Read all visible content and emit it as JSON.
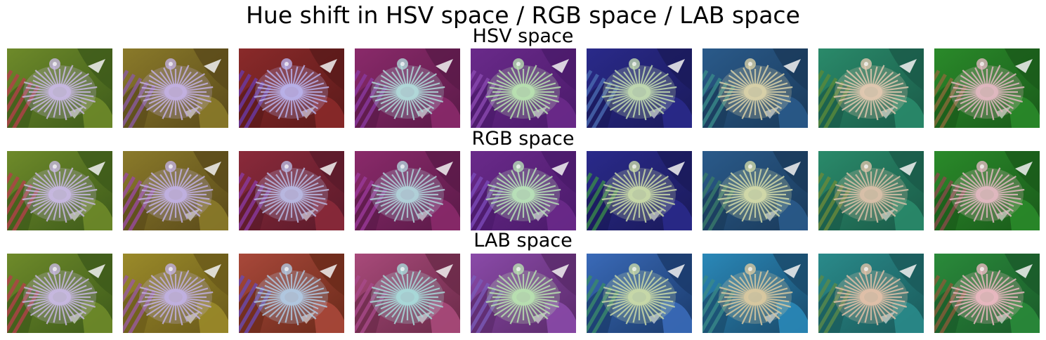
{
  "figure": {
    "title": "Hue shift in HSV space / RGB space / LAB space"
  },
  "rows": [
    {
      "id": "hsv",
      "title": "HSV space",
      "tiles": [
        {
          "tint": "#6e8a2a",
          "shade": "#3d5a1a",
          "petal": "#c7b8e0",
          "stripe": "#b3404a"
        },
        {
          "tint": "#8a7a2a",
          "shade": "#5a4a1a",
          "petal": "#c2b0e0",
          "stripe": "#8a5aa0"
        },
        {
          "tint": "#8a2a2a",
          "shade": "#5a1a1a",
          "petal": "#b8b0e8",
          "stripe": "#6a3aa8"
        },
        {
          "tint": "#8a2a6a",
          "shade": "#5a1a48",
          "petal": "#b0d8d8",
          "stripe": "#8a3aa0"
        },
        {
          "tint": "#6a2a8a",
          "shade": "#4a1a6a",
          "petal": "#b8e0b0",
          "stripe": "#8a4ab0"
        },
        {
          "tint": "#2a2a8a",
          "shade": "#1a1a5a",
          "petal": "#c0d8b0",
          "stripe": "#4a6ab0"
        },
        {
          "tint": "#2a5a8a",
          "shade": "#1a3a5a",
          "petal": "#d8d0a8",
          "stripe": "#3a8a8a"
        },
        {
          "tint": "#2a8a6a",
          "shade": "#1a5a48",
          "petal": "#e0c8b0",
          "stripe": "#5a8a3a"
        },
        {
          "tint": "#2a8a2a",
          "shade": "#1a5a1a",
          "petal": "#e0b8c0",
          "stripe": "#8a6a3a"
        }
      ]
    },
    {
      "id": "rgb",
      "title": "RGB space",
      "tiles": [
        {
          "tint": "#6e8a2a",
          "shade": "#3d5a1a",
          "petal": "#c7b8e0",
          "stripe": "#b3404a"
        },
        {
          "tint": "#8a7a2a",
          "shade": "#5a4a1a",
          "petal": "#c0b0e0",
          "stripe": "#9a4aa0"
        },
        {
          "tint": "#8a2a3a",
          "shade": "#5a1a2a",
          "petal": "#b8b8e0",
          "stripe": "#8a3aa0"
        },
        {
          "tint": "#8a2a6a",
          "shade": "#5a1a48",
          "petal": "#b0d0d8",
          "stripe": "#9a3a9a"
        },
        {
          "tint": "#6a2a8a",
          "shade": "#4a1a6a",
          "petal": "#b8e0b8",
          "stripe": "#7a4ab8"
        },
        {
          "tint": "#2a2a8a",
          "shade": "#1a1a5a",
          "petal": "#c8d8a8",
          "stripe": "#3a8a4a"
        },
        {
          "tint": "#2a5a8a",
          "shade": "#1a3a5a",
          "petal": "#d0d8a8",
          "stripe": "#3a7a6a"
        },
        {
          "tint": "#2a8a6a",
          "shade": "#1a5a48",
          "petal": "#d8c0a8",
          "stripe": "#6a8a3a"
        },
        {
          "tint": "#2a8a2a",
          "shade": "#1a5a1a",
          "petal": "#e0b8c0",
          "stripe": "#8a4a4a"
        }
      ]
    },
    {
      "id": "lab",
      "title": "LAB space",
      "tiles": [
        {
          "tint": "#6e8a2a",
          "shade": "#3d5a1a",
          "petal": "#c7b8e0",
          "stripe": "#b3404a"
        },
        {
          "tint": "#9a8a2a",
          "shade": "#6a5a1a",
          "petal": "#c0b0e0",
          "stripe": "#9a5aa0"
        },
        {
          "tint": "#a8483a",
          "shade": "#6a2a1a",
          "petal": "#b0c8e0",
          "stripe": "#6a4ab0"
        },
        {
          "tint": "#a84a7a",
          "shade": "#6a2a48",
          "petal": "#a8d8d8",
          "stripe": "#a84a8a"
        },
        {
          "tint": "#8a4aa8",
          "shade": "#5a2a6a",
          "petal": "#b8e0b0",
          "stripe": "#7a5ab8"
        },
        {
          "tint": "#3a6ab8",
          "shade": "#1a3a6a",
          "petal": "#c8d8a8",
          "stripe": "#3a8a6a"
        },
        {
          "tint": "#2a88b8",
          "shade": "#1a4a6a",
          "petal": "#d8c8a0",
          "stripe": "#3a8a8a"
        },
        {
          "tint": "#2a8a8a",
          "shade": "#1a5a5a",
          "petal": "#e0c0a8",
          "stripe": "#5a8a4a"
        },
        {
          "tint": "#2a8a3a",
          "shade": "#1a5a2a",
          "petal": "#e8b8c0",
          "stripe": "#8a5a3a"
        }
      ]
    }
  ]
}
